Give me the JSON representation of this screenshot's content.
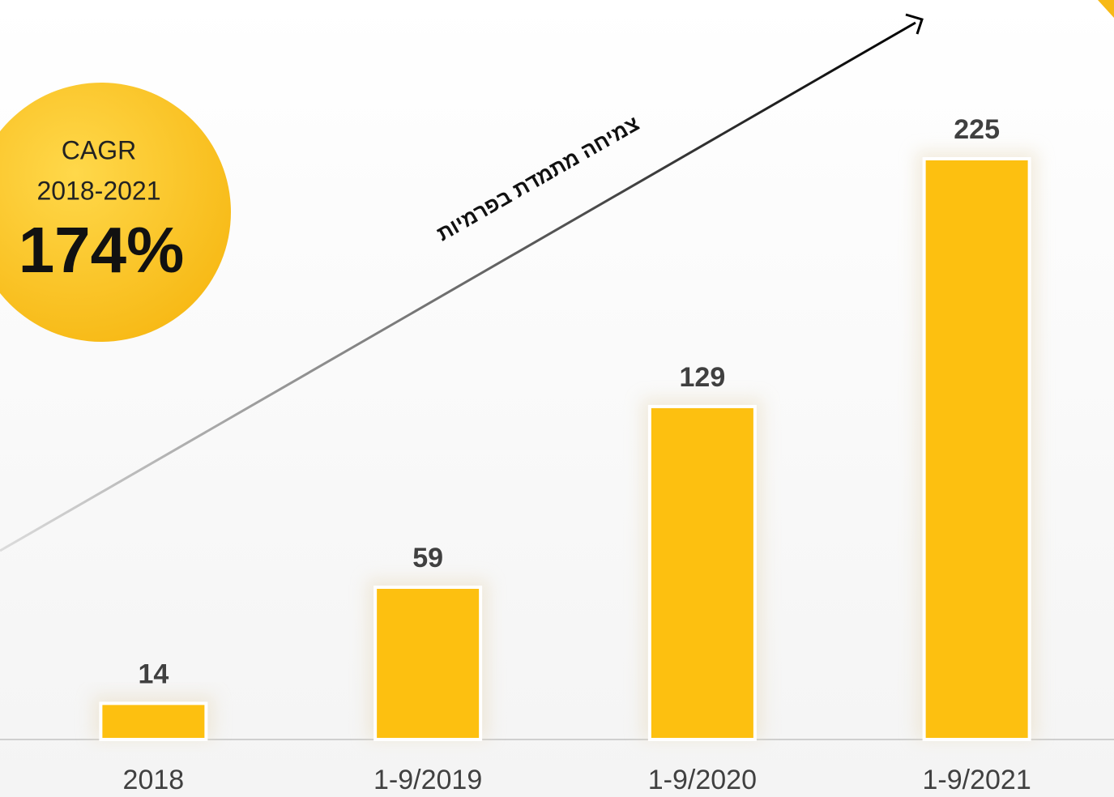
{
  "chart_data": {
    "type": "bar",
    "categories": [
      "2018",
      "1-9/2019",
      "1-9/2020",
      "1-9/2021"
    ],
    "values": [
      14,
      59,
      129,
      225
    ],
    "color": "#fdc010",
    "annotations": [
      "CAGR",
      "2018-2021",
      "174%",
      "צמיחה מתמדת בפרמיות"
    ]
  }
}
